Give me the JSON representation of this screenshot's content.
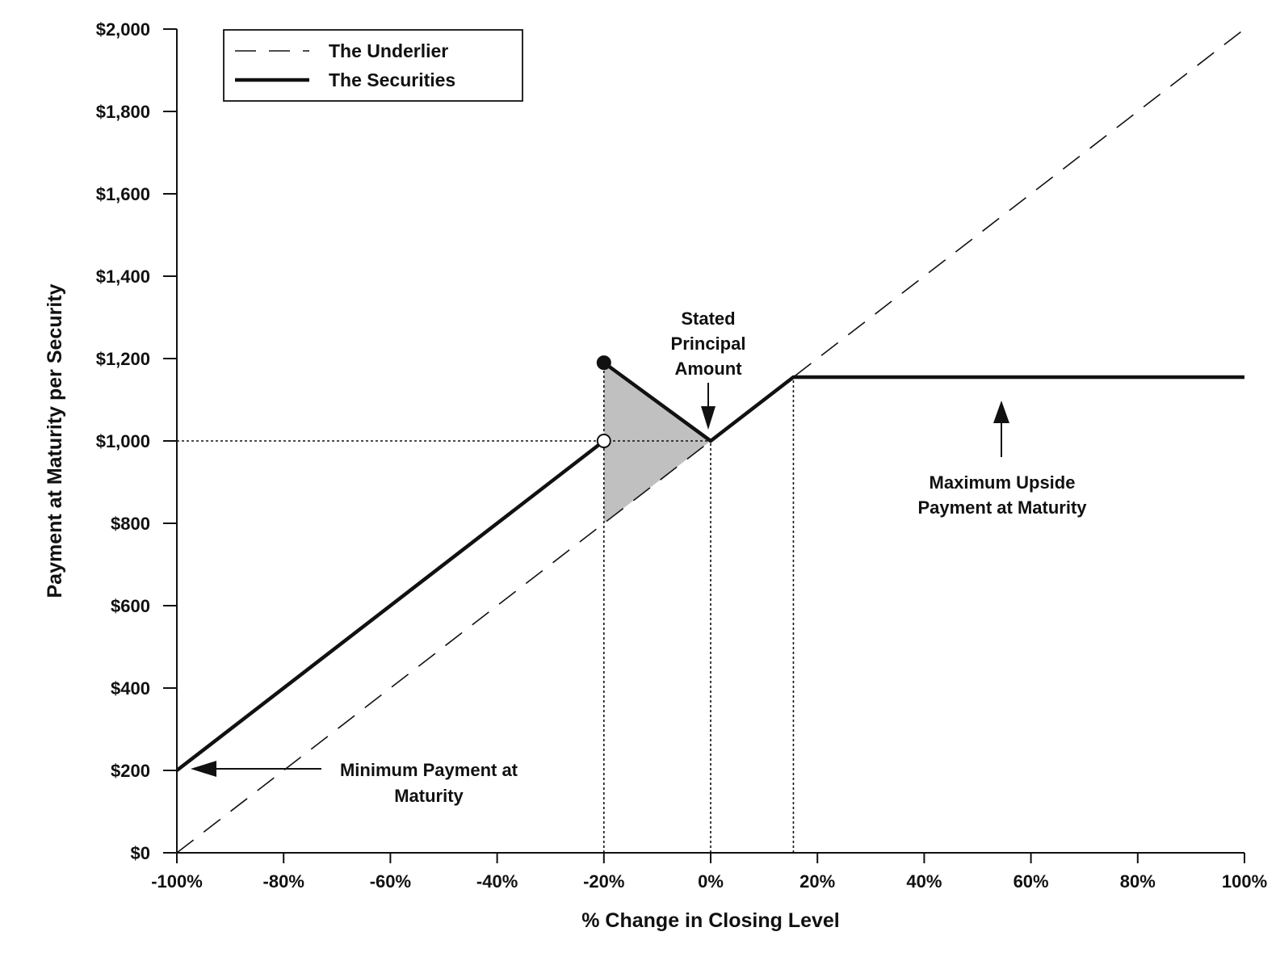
{
  "chart_data": {
    "type": "line",
    "xlabel": "% Change in Closing Level",
    "ylabel": "Payment at Maturity per Security",
    "xlim": [
      -100,
      100
    ],
    "ylim": [
      0,
      2000
    ],
    "x_ticks": [
      -100,
      -80,
      -60,
      -40,
      -20,
      0,
      20,
      40,
      60,
      80,
      100
    ],
    "x_tick_labels": [
      "-100%",
      "-80%",
      "-60%",
      "-40%",
      "-20%",
      "0%",
      "20%",
      "40%",
      "60%",
      "80%",
      "100%"
    ],
    "y_ticks": [
      0,
      200,
      400,
      600,
      800,
      1000,
      1200,
      1400,
      1600,
      1800,
      2000
    ],
    "y_tick_labels": [
      "$0",
      "$200",
      "$400",
      "$600",
      "$800",
      "$1,000",
      "$1,200",
      "$1,400",
      "$1,600",
      "$1,800",
      "$2,000"
    ],
    "grid": false,
    "legend_position": "top-left",
    "series": [
      {
        "name": "The Underlier",
        "style": "dashed",
        "color": "#111111",
        "x": [
          -100,
          100
        ],
        "y": [
          0,
          2000
        ]
      },
      {
        "name": "The Securities",
        "style": "solid-thick",
        "color": "#111111",
        "segments": [
          {
            "x": [
              -100,
              -20
            ],
            "y": [
              200,
              1000
            ]
          },
          {
            "x": [
              -20,
              0,
              15.5,
              100
            ],
            "y": [
              1190,
              1000,
              1155,
              1155
            ]
          }
        ]
      }
    ],
    "markers": [
      {
        "x": -20,
        "y": 1190,
        "fill": "filled"
      },
      {
        "x": -20,
        "y": 1000,
        "fill": "open"
      }
    ],
    "shaded_region": {
      "color": "#c0c0c0",
      "x": [
        -20,
        -20,
        0
      ],
      "y": [
        800,
        1190,
        1000
      ]
    },
    "reference_lines": [
      {
        "x": [
          -100,
          0
        ],
        "y": [
          1000,
          1000
        ]
      },
      {
        "x": [
          -20,
          -20
        ],
        "y": [
          0,
          1190
        ]
      },
      {
        "x": [
          0,
          0
        ],
        "y": [
          0,
          1000
        ]
      },
      {
        "x": [
          15.5,
          15.5
        ],
        "y": [
          0,
          1155
        ]
      }
    ],
    "annotations": {
      "stated_principal": {
        "lines": [
          "Stated",
          "Principal",
          "Amount"
        ],
        "arrow_target": {
          "x": 0,
          "y": 1000
        }
      },
      "max_upside": {
        "lines": [
          "Maximum Upside",
          "Payment at Maturity"
        ],
        "arrow_target": {
          "x": 55,
          "y": 1155
        }
      },
      "min_payment": {
        "lines": [
          "Minimum Payment at",
          "Maturity"
        ],
        "arrow_target": {
          "x": -100,
          "y": 200
        }
      }
    }
  }
}
